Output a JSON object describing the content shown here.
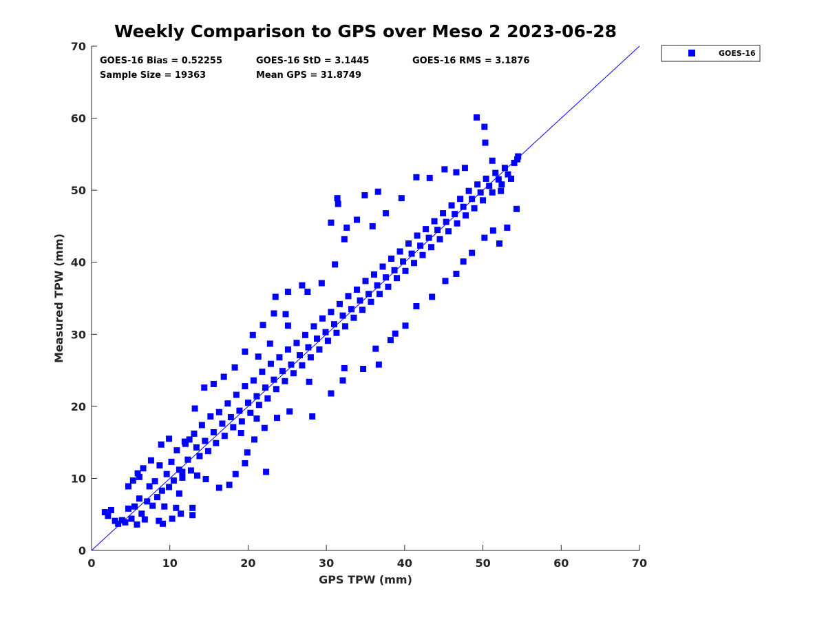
{
  "chart_data": {
    "type": "scatter",
    "title": "Weekly Comparison to GPS over Meso 2 2023-06-28",
    "xlabel": "GPS TPW (mm)",
    "ylabel": "Measured TPW (mm)",
    "xlim": [
      0,
      70
    ],
    "ylim": [
      0,
      70
    ],
    "xticks": [
      0,
      10,
      20,
      30,
      40,
      50,
      60,
      70
    ],
    "yticks": [
      0,
      10,
      20,
      30,
      40,
      50,
      60,
      70
    ],
    "grid": false,
    "legend_position": "outside-top-right",
    "series": [
      {
        "name": "GOES-16",
        "color": "#0000ff",
        "marker": "square",
        "points": [
          [
            1.7,
            5.3
          ],
          [
            2.1,
            4.8
          ],
          [
            2.5,
            5.6
          ],
          [
            3.0,
            4.1
          ],
          [
            3.4,
            3.7
          ],
          [
            3.9,
            4.2
          ],
          [
            4.3,
            3.9
          ],
          [
            4.7,
            5.8
          ],
          [
            5.1,
            4.4
          ],
          [
            5.5,
            6.1
          ],
          [
            5.8,
            3.6
          ],
          [
            6.1,
            7.2
          ],
          [
            6.4,
            5.1
          ],
          [
            6.8,
            4.3
          ],
          [
            7.1,
            6.8
          ],
          [
            7.4,
            8.9
          ],
          [
            7.8,
            6.2
          ],
          [
            8.1,
            9.6
          ],
          [
            8.4,
            7.4
          ],
          [
            8.7,
            11.8
          ],
          [
            9.0,
            8.3
          ],
          [
            9.3,
            6.1
          ],
          [
            9.6,
            10.6
          ],
          [
            9.9,
            8.8
          ],
          [
            10.2,
            12.3
          ],
          [
            10.5,
            9.7
          ],
          [
            10.9,
            13.9
          ],
          [
            11.2,
            11.2
          ],
          [
            11.6,
            10.1
          ],
          [
            12.0,
            14.8
          ],
          [
            12.3,
            12.6
          ],
          [
            12.7,
            11.1
          ],
          [
            13.1,
            16.2
          ],
          [
            13.4,
            14.3
          ],
          [
            13.8,
            13.1
          ],
          [
            14.1,
            17.4
          ],
          [
            14.5,
            15.2
          ],
          [
            14.9,
            13.8
          ],
          [
            15.2,
            18.6
          ],
          [
            15.6,
            16.4
          ],
          [
            15.9,
            14.9
          ],
          [
            16.3,
            19.2
          ],
          [
            16.7,
            17.6
          ],
          [
            17.0,
            15.9
          ],
          [
            17.4,
            20.4
          ],
          [
            17.8,
            18.5
          ],
          [
            18.1,
            17.1
          ],
          [
            18.5,
            21.6
          ],
          [
            18.9,
            19.4
          ],
          [
            19.2,
            17.9
          ],
          [
            19.6,
            22.8
          ],
          [
            20.0,
            20.5
          ],
          [
            20.3,
            19.1
          ],
          [
            20.7,
            23.6
          ],
          [
            21.1,
            21.4
          ],
          [
            21.4,
            20.2
          ],
          [
            21.8,
            24.8
          ],
          [
            22.2,
            22.6
          ],
          [
            22.5,
            21.1
          ],
          [
            22.9,
            25.9
          ],
          [
            23.3,
            23.7
          ],
          [
            23.6,
            22.4
          ],
          [
            24.0,
            26.8
          ],
          [
            24.4,
            24.9
          ],
          [
            24.7,
            23.5
          ],
          [
            25.1,
            27.9
          ],
          [
            25.5,
            25.8
          ],
          [
            25.8,
            24.6
          ],
          [
            26.2,
            28.8
          ],
          [
            26.6,
            27.1
          ],
          [
            26.9,
            25.7
          ],
          [
            27.3,
            29.9
          ],
          [
            27.7,
            28.2
          ],
          [
            28.0,
            26.8
          ],
          [
            28.4,
            31.1
          ],
          [
            28.8,
            29.4
          ],
          [
            29.1,
            27.9
          ],
          [
            29.5,
            32.2
          ],
          [
            29.9,
            30.3
          ],
          [
            30.2,
            29.1
          ],
          [
            30.6,
            33.1
          ],
          [
            31.0,
            31.4
          ],
          [
            31.3,
            30.2
          ],
          [
            31.7,
            34.2
          ],
          [
            32.1,
            32.6
          ],
          [
            32.4,
            31.1
          ],
          [
            32.8,
            35.3
          ],
          [
            33.2,
            33.5
          ],
          [
            33.5,
            32.3
          ],
          [
            33.9,
            36.2
          ],
          [
            34.3,
            34.7
          ],
          [
            34.6,
            33.4
          ],
          [
            35.0,
            37.4
          ],
          [
            35.4,
            35.6
          ],
          [
            35.7,
            34.5
          ],
          [
            36.1,
            38.3
          ],
          [
            36.5,
            36.8
          ],
          [
            36.8,
            35.6
          ],
          [
            37.2,
            39.4
          ],
          [
            37.6,
            37.9
          ],
          [
            37.9,
            36.6
          ],
          [
            38.3,
            40.5
          ],
          [
            38.7,
            38.9
          ],
          [
            39.0,
            37.8
          ],
          [
            39.4,
            41.5
          ],
          [
            39.8,
            40.1
          ],
          [
            40.1,
            38.8
          ],
          [
            40.5,
            42.6
          ],
          [
            40.9,
            41.2
          ],
          [
            41.2,
            39.9
          ],
          [
            41.6,
            43.7
          ],
          [
            42.0,
            42.3
          ],
          [
            42.3,
            41.0
          ],
          [
            42.7,
            44.6
          ],
          [
            43.1,
            43.4
          ],
          [
            43.4,
            42.1
          ],
          [
            43.8,
            45.7
          ],
          [
            44.2,
            44.5
          ],
          [
            44.5,
            43.2
          ],
          [
            44.9,
            46.8
          ],
          [
            45.3,
            45.6
          ],
          [
            45.6,
            44.3
          ],
          [
            46.0,
            47.9
          ],
          [
            46.4,
            46.7
          ],
          [
            46.7,
            45.4
          ],
          [
            47.1,
            48.8
          ],
          [
            47.5,
            47.7
          ],
          [
            47.8,
            46.5
          ],
          [
            48.2,
            49.9
          ],
          [
            48.6,
            48.8
          ],
          [
            48.9,
            47.5
          ],
          [
            49.3,
            50.8
          ],
          [
            49.7,
            49.7
          ],
          [
            50.0,
            48.6
          ],
          [
            50.4,
            51.6
          ],
          [
            50.8,
            50.6
          ],
          [
            51.2,
            49.7
          ],
          [
            51.6,
            52.4
          ],
          [
            52.0,
            51.5
          ],
          [
            52.4,
            50.8
          ],
          [
            52.8,
            53.1
          ],
          [
            53.2,
            52.2
          ],
          [
            53.6,
            51.6
          ],
          [
            54.0,
            53.8
          ],
          [
            54.4,
            54.3
          ],
          [
            24.8,
            32.8
          ],
          [
            27.6,
            35.9
          ],
          [
            29.4,
            37.1
          ],
          [
            31.1,
            39.7
          ],
          [
            32.3,
            43.2
          ],
          [
            31.4,
            48.9
          ],
          [
            31.5,
            48.1
          ],
          [
            32.6,
            44.8
          ],
          [
            34.9,
            49.3
          ],
          [
            36.6,
            49.8
          ],
          [
            30.6,
            45.5
          ],
          [
            33.9,
            45.9
          ],
          [
            35.9,
            45.0
          ],
          [
            37.6,
            46.8
          ],
          [
            39.6,
            48.9
          ],
          [
            41.5,
            51.8
          ],
          [
            43.2,
            51.7
          ],
          [
            45.1,
            52.9
          ],
          [
            46.6,
            52.5
          ],
          [
            47.7,
            53.1
          ],
          [
            49.2,
            60.1
          ],
          [
            50.2,
            58.8
          ],
          [
            50.3,
            56.6
          ],
          [
            51.2,
            54.1
          ],
          [
            52.3,
            49.9
          ],
          [
            54.5,
            54.7
          ],
          [
            27.8,
            23.4
          ],
          [
            28.2,
            18.6
          ],
          [
            30.6,
            21.8
          ],
          [
            32.1,
            23.6
          ],
          [
            32.3,
            25.3
          ],
          [
            34.7,
            25.2
          ],
          [
            36.7,
            25.8
          ],
          [
            36.3,
            28.0
          ],
          [
            38.2,
            29.2
          ],
          [
            38.8,
            30.1
          ],
          [
            40.1,
            31.2
          ],
          [
            41.5,
            33.9
          ],
          [
            43.5,
            35.2
          ],
          [
            45.2,
            37.4
          ],
          [
            46.6,
            38.4
          ],
          [
            47.5,
            40.1
          ],
          [
            48.6,
            41.3
          ],
          [
            50.2,
            43.4
          ],
          [
            51.3,
            44.4
          ],
          [
            52.1,
            42.6
          ],
          [
            53.1,
            44.8
          ],
          [
            54.3,
            47.4
          ],
          [
            21.1,
            18.3
          ],
          [
            22.1,
            17.0
          ],
          [
            23.7,
            18.4
          ],
          [
            25.3,
            19.3
          ],
          [
            19.6,
            12.1
          ],
          [
            18.4,
            10.6
          ],
          [
            17.6,
            9.1
          ],
          [
            16.3,
            8.7
          ],
          [
            14.6,
            9.9
          ],
          [
            13.5,
            10.4
          ],
          [
            12.9,
            4.9
          ],
          [
            12.9,
            5.9
          ],
          [
            11.2,
            7.9
          ],
          [
            11.6,
            10.9
          ],
          [
            22.3,
            10.9
          ],
          [
            19.9,
            13.6
          ],
          [
            20.8,
            15.4
          ],
          [
            19.1,
            16.3
          ],
          [
            13.2,
            19.7
          ],
          [
            14.4,
            22.6
          ],
          [
            15.6,
            23.1
          ],
          [
            16.9,
            24.1
          ],
          [
            18.3,
            25.4
          ],
          [
            19.6,
            27.6
          ],
          [
            20.6,
            29.9
          ],
          [
            21.9,
            31.3
          ],
          [
            23.3,
            32.9
          ],
          [
            23.5,
            35.2
          ],
          [
            25.1,
            35.9
          ],
          [
            26.9,
            36.8
          ],
          [
            25.1,
            31.2
          ],
          [
            22.8,
            28.7
          ],
          [
            21.3,
            26.9
          ],
          [
            8.6,
            4.1
          ],
          [
            9.1,
            3.7
          ],
          [
            10.3,
            4.4
          ],
          [
            10.8,
            5.9
          ],
          [
            11.4,
            5.1
          ],
          [
            7.6,
            12.5
          ],
          [
            6.6,
            11.4
          ],
          [
            5.9,
            10.7
          ],
          [
            8.9,
            14.7
          ],
          [
            9.9,
            15.5
          ],
          [
            11.9,
            15.1
          ],
          [
            12.5,
            15.4
          ],
          [
            4.7,
            8.9
          ],
          [
            5.3,
            9.7
          ],
          [
            6.1,
            10.2
          ]
        ]
      }
    ],
    "reference_line": {
      "label": "1:1",
      "from": [
        0,
        0
      ],
      "to": [
        70,
        70
      ],
      "color": "#0000ff"
    },
    "annotations": {
      "bias": "GOES-16 Bias = 0.52255",
      "std": "GOES-16 StD = 3.1445",
      "rms": "GOES-16 RMS = 3.1876",
      "sample_size": "Sample Size = 19363",
      "mean_gps": "Mean GPS = 31.8749"
    }
  }
}
